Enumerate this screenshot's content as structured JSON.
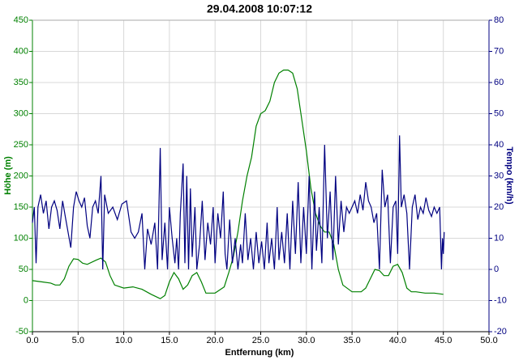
{
  "chart_data": {
    "type": "line",
    "title": "29.04.2008 10:07:12",
    "xlabel": "Entfernung (km)",
    "ylabel": "Höhe (m)",
    "y2label": "Tempo (km/h)",
    "grid": true,
    "xlim": [
      0,
      50
    ],
    "xticks": [
      {
        "value": 0,
        "label": "0.0"
      },
      {
        "value": 5,
        "label": "5.0"
      },
      {
        "value": 10,
        "label": "10.0"
      },
      {
        "value": 15,
        "label": "15.0"
      },
      {
        "value": 20,
        "label": "20.0"
      },
      {
        "value": 25,
        "label": "25.0"
      },
      {
        "value": 30,
        "label": "30.0"
      },
      {
        "value": 35,
        "label": "35.0"
      },
      {
        "value": 40,
        "label": "40.0"
      },
      {
        "value": 45,
        "label": "45.0"
      },
      {
        "value": 50,
        "label": "50.0"
      }
    ],
    "ylim": [
      -50,
      450
    ],
    "yticks": [
      -50,
      0,
      50,
      100,
      150,
      200,
      250,
      300,
      350,
      400,
      450
    ],
    "y2lim": [
      -20,
      80
    ],
    "y2ticks": [
      -20,
      -10,
      0,
      10,
      20,
      30,
      40,
      50,
      60,
      70,
      80
    ],
    "series": [
      {
        "name": "Höhe (m)",
        "color": "#008000",
        "axis": "y",
        "x": [
          0,
          1,
          2,
          2.5,
          3,
          3.5,
          4,
          4.5,
          5,
          5.5,
          6,
          7,
          7.5,
          8,
          8.5,
          9,
          10,
          11,
          12,
          13,
          14,
          14.5,
          15,
          15.5,
          16,
          16.5,
          17,
          17.5,
          18,
          18.5,
          19,
          20,
          21,
          21.5,
          22,
          22.5,
          23,
          23.5,
          24,
          24.5,
          25,
          25.5,
          26,
          26.5,
          27,
          27.5,
          28,
          28.5,
          29,
          29.5,
          30,
          30.5,
          31,
          31.5,
          32,
          32.5,
          33,
          33.5,
          34,
          35,
          36,
          36.5,
          37,
          37.5,
          38,
          38.5,
          39,
          39.5,
          40,
          40.5,
          41,
          41.5,
          42,
          43,
          44,
          45
        ],
        "values": [
          32,
          30,
          28,
          25,
          25,
          35,
          55,
          67,
          66,
          60,
          58,
          65,
          68,
          62,
          40,
          25,
          20,
          22,
          18,
          10,
          3,
          8,
          30,
          45,
          35,
          18,
          25,
          40,
          45,
          30,
          12,
          12,
          22,
          45,
          70,
          110,
          160,
          200,
          230,
          280,
          300,
          305,
          320,
          350,
          365,
          370,
          370,
          365,
          340,
          290,
          240,
          180,
          140,
          120,
          110,
          110,
          90,
          50,
          25,
          14,
          14,
          20,
          35,
          50,
          48,
          40,
          40,
          55,
          58,
          45,
          20,
          14,
          14,
          12,
          12,
          10
        ]
      },
      {
        "name": "Tempo (km/h)",
        "color": "#000080",
        "axis": "y2",
        "x": [
          0,
          0.2,
          0.4,
          0.6,
          0.9,
          1.2,
          1.5,
          1.8,
          2.1,
          2.4,
          2.7,
          3.0,
          3.3,
          3.6,
          3.9,
          4.2,
          4.5,
          4.8,
          5.1,
          5.4,
          5.7,
          6.0,
          6.3,
          6.6,
          6.9,
          7.2,
          7.5,
          7.7,
          7.9,
          8.3,
          8.8,
          9.3,
          9.8,
          10.3,
          10.8,
          11.2,
          11.6,
          12.0,
          12.3,
          12.6,
          13.0,
          13.4,
          13.7,
          14.0,
          14.2,
          14.5,
          14.8,
          15.0,
          15.3,
          15.6,
          15.8,
          16.0,
          16.2,
          16.5,
          16.7,
          16.9,
          17.1,
          17.3,
          17.5,
          17.8,
          18.0,
          18.3,
          18.6,
          18.9,
          19.2,
          19.5,
          19.8,
          20.0,
          20.3,
          20.6,
          20.9,
          21.1,
          21.3,
          21.6,
          21.9,
          22.2,
          22.5,
          22.8,
          23.0,
          23.3,
          23.6,
          23.9,
          24.2,
          24.5,
          24.8,
          25.1,
          25.4,
          25.7,
          25.9,
          26.2,
          26.5,
          26.8,
          27.0,
          27.3,
          27.6,
          27.9,
          28.2,
          28.5,
          28.8,
          29.1,
          29.4,
          29.7,
          30.0,
          30.3,
          30.6,
          30.9,
          31.1,
          31.4,
          31.7,
          32.0,
          32.3,
          32.6,
          32.9,
          33.2,
          33.5,
          33.8,
          34.1,
          34.4,
          34.7,
          35.0,
          35.3,
          35.6,
          35.9,
          36.2,
          36.5,
          36.8,
          37.1,
          37.4,
          37.7,
          38.0,
          38.3,
          38.6,
          38.9,
          39.2,
          39.5,
          39.8,
          40.0,
          40.2,
          40.4,
          40.7,
          41.0,
          41.3,
          41.6,
          41.9,
          42.2,
          42.5,
          42.8,
          43.1,
          43.4,
          43.7,
          44.0,
          44.3,
          44.6,
          44.8,
          44.9,
          45.0,
          45.1
        ],
        "values": [
          15,
          20,
          2,
          20,
          24,
          18,
          22,
          13,
          20,
          22,
          19,
          13,
          22,
          17,
          12,
          7,
          20,
          25,
          22,
          20,
          23,
          14,
          10,
          20,
          22,
          18,
          30,
          0,
          24,
          18,
          20,
          16,
          21,
          22,
          12,
          10,
          12,
          18,
          0,
          13,
          8,
          15,
          0,
          39,
          3,
          15,
          0,
          20,
          10,
          2,
          10,
          0,
          18,
          34,
          2,
          30,
          0,
          26,
          4,
          20,
          0,
          8,
          22,
          3,
          15,
          8,
          20,
          2,
          18,
          10,
          25,
          5,
          0,
          16,
          2,
          10,
          0,
          8,
          2,
          18,
          3,
          10,
          0,
          12,
          2,
          9,
          0,
          15,
          2,
          10,
          0,
          20,
          3,
          12,
          2,
          18,
          0,
          22,
          5,
          28,
          2,
          20,
          5,
          30,
          0,
          25,
          6,
          20,
          2,
          40,
          10,
          25,
          3,
          30,
          8,
          22,
          12,
          20,
          18,
          20,
          22,
          18,
          24,
          19,
          28,
          22,
          20,
          15,
          18,
          0,
          32,
          20,
          24,
          2,
          20,
          22,
          5,
          43,
          20,
          24,
          18,
          0,
          20,
          24,
          16,
          20,
          18,
          23,
          19,
          17,
          20,
          18,
          20,
          0,
          10,
          5,
          12
        ]
      }
    ]
  }
}
